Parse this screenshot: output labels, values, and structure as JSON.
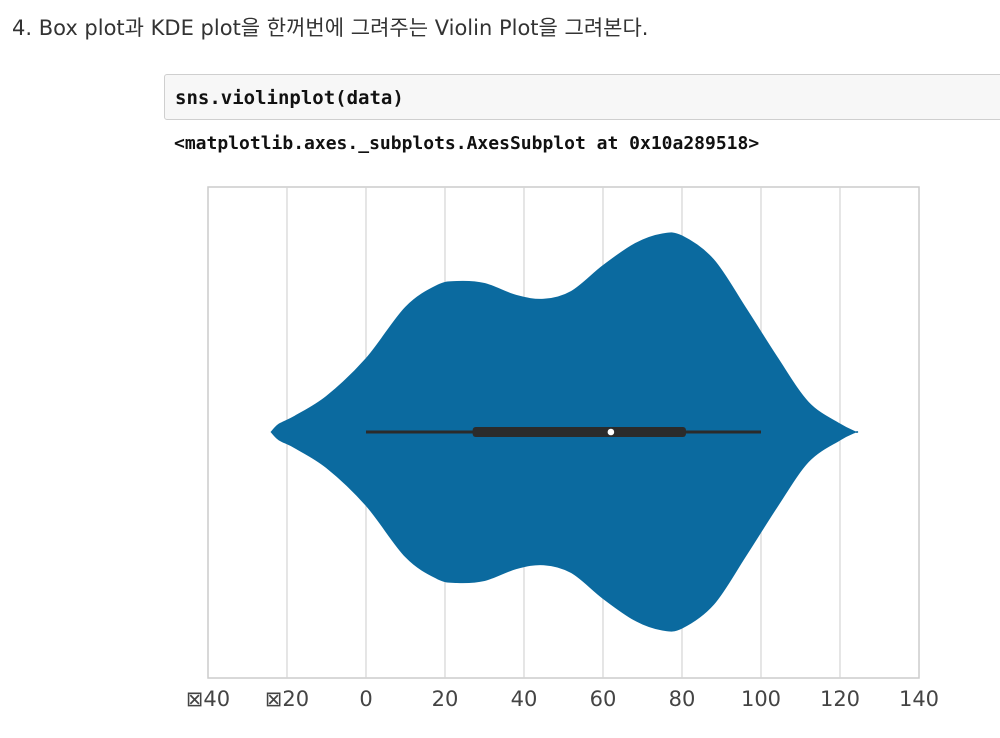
{
  "heading": "4. Box plot과 KDE plot을 한꺼번에 그려주는 Violin  Plot을 그려본다.",
  "code_cell": {
    "code": "sns.violinplot(data)"
  },
  "output": {
    "text": "<matplotlib.axes._subplots.AxesSubplot at 0x10a289518>"
  },
  "colors": {
    "violin": "#0b6a9f",
    "box": "#2b2b2b",
    "median": "#ffffff",
    "grid": "#d4d4d4",
    "axes_edge": "#cccccc"
  },
  "chart_data": {
    "type": "violin",
    "orientation": "horizontal",
    "xlim": [
      -40,
      140
    ],
    "xticks": [
      -40,
      -20,
      0,
      20,
      40,
      60,
      80,
      100,
      120,
      140
    ],
    "xtick_labels": [
      "⊠40",
      "⊠20",
      "0",
      "20",
      "40",
      "60",
      "80",
      "100",
      "120",
      "140"
    ],
    "grid": true,
    "box": {
      "whisker_low": 0,
      "q1": 27,
      "median": 62,
      "q3": 81,
      "whisker_high": 100
    },
    "kde_extent": [
      -24,
      124
    ],
    "kde_relative_density": [
      [
        -24,
        0.0
      ],
      [
        -22,
        0.04
      ],
      [
        -18,
        0.08
      ],
      [
        -10,
        0.18
      ],
      [
        0,
        0.37
      ],
      [
        10,
        0.63
      ],
      [
        18,
        0.74
      ],
      [
        23,
        0.76
      ],
      [
        30,
        0.75
      ],
      [
        38,
        0.69
      ],
      [
        45,
        0.67
      ],
      [
        52,
        0.71
      ],
      [
        60,
        0.84
      ],
      [
        68,
        0.95
      ],
      [
        75,
        1.0
      ],
      [
        80,
        0.99
      ],
      [
        88,
        0.87
      ],
      [
        96,
        0.63
      ],
      [
        104,
        0.38
      ],
      [
        112,
        0.15
      ],
      [
        120,
        0.04
      ],
      [
        124,
        0.0
      ]
    ]
  }
}
